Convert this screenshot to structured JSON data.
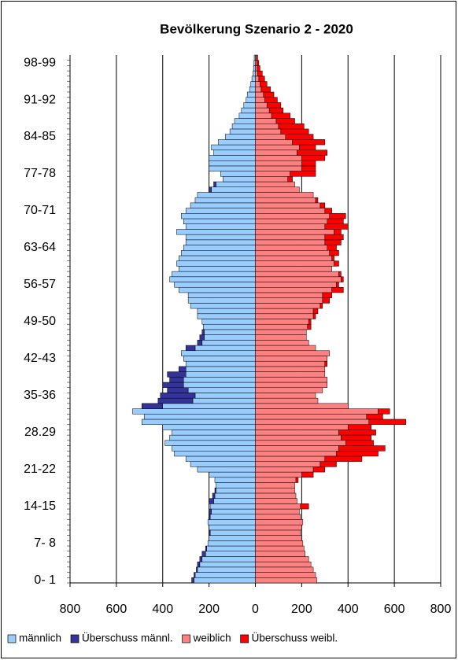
{
  "chart_data": {
    "type": "bar",
    "orientation": "horizontal",
    "title": "Bevölkerung Szenario 2 - 2020",
    "categories": [
      "0- 1",
      null,
      null,
      null,
      null,
      null,
      null,
      "7- 8",
      null,
      null,
      null,
      null,
      null,
      null,
      "14-15",
      null,
      null,
      null,
      null,
      null,
      null,
      "21-22",
      null,
      null,
      null,
      null,
      null,
      null,
      "28.29",
      null,
      null,
      null,
      null,
      null,
      null,
      "35-36",
      null,
      null,
      null,
      null,
      null,
      null,
      "42-43",
      null,
      null,
      null,
      null,
      null,
      null,
      "49-50",
      null,
      null,
      null,
      null,
      null,
      null,
      "56-57",
      null,
      null,
      null,
      null,
      null,
      null,
      "63-64",
      null,
      null,
      null,
      null,
      null,
      null,
      "70-71",
      null,
      null,
      null,
      null,
      null,
      null,
      "77-78",
      null,
      null,
      null,
      null,
      null,
      null,
      "84-85",
      null,
      null,
      null,
      null,
      null,
      null,
      "91-92",
      null,
      null,
      null,
      null,
      null,
      null,
      "98-99",
      null
    ],
    "series": [
      {
        "name": "männlich",
        "color": "#99ccff",
        "values": [
          -265,
          -260,
          -250,
          -240,
          -230,
          -215,
          -210,
          -205,
          -200,
          -195,
          -200,
          -205,
          -195,
          -190,
          -195,
          -180,
          -175,
          -170,
          -170,
          -175,
          -200,
          -250,
          -280,
          -300,
          -350,
          -360,
          -390,
          -370,
          -360,
          -400,
          -490,
          -480,
          -530,
          -400,
          -270,
          -260,
          -290,
          -310,
          -310,
          -300,
          -300,
          -300,
          -310,
          -320,
          -260,
          -230,
          -220,
          -220,
          -225,
          -230,
          -250,
          -250,
          -280,
          -290,
          -290,
          -330,
          -350,
          -370,
          -360,
          -330,
          -340,
          -330,
          -320,
          -310,
          -300,
          -300,
          -340,
          -300,
          -310,
          -320,
          -300,
          -280,
          -260,
          -250,
          -190,
          -170,
          -140,
          -150,
          -200,
          -200,
          -200,
          -180,
          -190,
          -160,
          -130,
          -110,
          -100,
          -90,
          -70,
          -60,
          -50,
          -40,
          -35,
          -25,
          -20,
          -15,
          -10,
          -8,
          -6,
          -5
        ]
      },
      {
        "name": "Überschuss männl.",
        "color": "#333399",
        "values": [
          -10,
          -5,
          -5,
          -10,
          -10,
          -15,
          -5,
          0,
          0,
          -5,
          0,
          0,
          -5,
          -10,
          0,
          -20,
          -10,
          -5,
          0,
          0,
          0,
          0,
          0,
          0,
          0,
          0,
          0,
          0,
          0,
          0,
          0,
          0,
          0,
          -90,
          -150,
          -150,
          -90,
          -90,
          -60,
          -80,
          -30,
          0,
          0,
          0,
          -40,
          -20,
          -20,
          -10,
          0,
          0,
          0,
          0,
          0,
          0,
          0,
          0,
          0,
          0,
          0,
          0,
          0,
          0,
          0,
          0,
          0,
          0,
          0,
          0,
          0,
          0,
          0,
          0,
          0,
          0,
          -10,
          -10,
          0,
          0,
          0,
          0,
          0,
          0,
          0,
          0,
          0,
          0,
          0,
          0,
          0,
          0,
          0,
          0,
          0,
          0,
          0,
          0,
          0,
          0,
          0,
          0
        ]
      },
      {
        "name": "weiblich",
        "color": "#ff8080",
        "values": [
          265,
          260,
          250,
          240,
          230,
          215,
          210,
          205,
          200,
          195,
          200,
          205,
          195,
          190,
          195,
          180,
          175,
          170,
          170,
          175,
          200,
          250,
          280,
          300,
          350,
          360,
          390,
          370,
          360,
          400,
          490,
          480,
          530,
          400,
          270,
          260,
          290,
          310,
          310,
          300,
          300,
          300,
          310,
          320,
          260,
          230,
          220,
          220,
          225,
          230,
          250,
          250,
          280,
          290,
          290,
          330,
          350,
          370,
          360,
          330,
          340,
          330,
          320,
          310,
          300,
          300,
          340,
          300,
          310,
          320,
          300,
          280,
          260,
          250,
          190,
          170,
          140,
          150,
          200,
          200,
          200,
          180,
          190,
          160,
          130,
          110,
          100,
          90,
          70,
          60,
          50,
          40,
          35,
          25,
          20,
          15,
          10,
          8,
          6,
          5
        ]
      },
      {
        "name": "Überschuss weibl.",
        "color": "#ff0000",
        "values": [
          0,
          0,
          0,
          0,
          0,
          0,
          0,
          0,
          0,
          0,
          0,
          0,
          0,
          0,
          35,
          0,
          0,
          0,
          0,
          10,
          50,
          50,
          70,
          160,
          180,
          200,
          120,
          130,
          160,
          100,
          160,
          70,
          50,
          0,
          0,
          0,
          0,
          0,
          0,
          0,
          0,
          10,
          0,
          0,
          0,
          0,
          0,
          0,
          15,
          10,
          10,
          20,
          10,
          30,
          40,
          50,
          10,
          10,
          10,
          0,
          20,
          10,
          40,
          40,
          70,
          80,
          30,
          100,
          70,
          70,
          30,
          20,
          10,
          0,
          0,
          0,
          20,
          110,
          60,
          60,
          100,
          130,
          70,
          140,
          120,
          120,
          110,
          80,
          80,
          60,
          60,
          55,
          45,
          40,
          30,
          25,
          20,
          12,
          9,
          5
        ]
      }
    ],
    "xlim": [
      -800,
      800
    ],
    "xticks": [
      {
        "value": -800,
        "label": "800"
      },
      {
        "value": -600,
        "label": "600"
      },
      {
        "value": -400,
        "label": "400"
      },
      {
        "value": -200,
        "label": "200"
      },
      0,
      200,
      400,
      600,
      800
    ],
    "grid": true
  }
}
